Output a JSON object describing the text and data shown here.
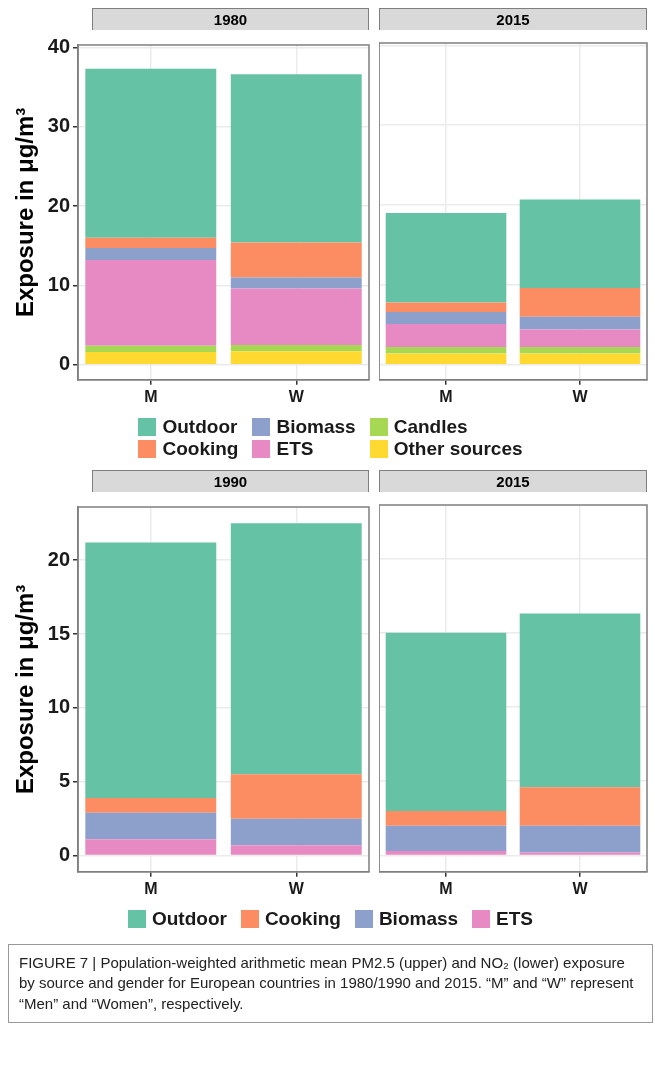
{
  "chart_data": [
    {
      "type": "bar",
      "title": "1980",
      "ylabel": "Exposure in μg/m³",
      "categories": [
        "M",
        "W"
      ],
      "stacked": true,
      "ylim": [
        -1.9,
        40.3
      ],
      "yticks": [
        0,
        10,
        20,
        30,
        40
      ],
      "grid": true,
      "legend": "bottom",
      "series": [
        {
          "name": "Other sources",
          "color": "#ffd92f",
          "values": [
            1.6,
            1.7
          ]
        },
        {
          "name": "Candles",
          "color": "#a6d854",
          "values": [
            0.8,
            0.8
          ]
        },
        {
          "name": "ETS",
          "color": "#e78ac3",
          "values": [
            10.8,
            7.1
          ]
        },
        {
          "name": "Biomass",
          "color": "#8da0cb",
          "values": [
            1.5,
            1.4
          ]
        },
        {
          "name": "Cooking",
          "color": "#fc8d62",
          "values": [
            1.3,
            4.4
          ]
        },
        {
          "name": "Outdoor",
          "color": "#66c2a5",
          "values": [
            21.3,
            21.2
          ]
        }
      ]
    },
    {
      "type": "bar",
      "title": "2015",
      "categories": [
        "M",
        "W"
      ],
      "stacked": true,
      "ylim": [
        -1.9,
        40.3
      ],
      "yticks": [
        0,
        10,
        20,
        30,
        40
      ],
      "grid": true,
      "tick_labels": "x",
      "series": [
        {
          "color": "#ffd92f",
          "values": [
            1.4,
            1.4
          ]
        },
        {
          "color": "#a6d854",
          "values": [
            0.8,
            0.8
          ]
        },
        {
          "color": "#e78ac3",
          "values": [
            2.9,
            2.2
          ]
        },
        {
          "color": "#8da0cb",
          "values": [
            1.5,
            1.6
          ]
        },
        {
          "color": "#fc8d62",
          "values": [
            1.2,
            3.6
          ]
        },
        {
          "color": "#66c2a5",
          "values": [
            11.2,
            11.1
          ]
        }
      ]
    },
    {
      "type": "bar",
      "title": "1990",
      "ylabel": "Exposure in μg/m³",
      "categories": [
        "M",
        "W"
      ],
      "stacked": true,
      "ylim": [
        -1.1,
        23.6
      ],
      "yticks": [
        0,
        5,
        10,
        15,
        20
      ],
      "grid": true,
      "legend": "bottom",
      "series": [
        {
          "name": "ETS",
          "color": "#e78ac3",
          "values": [
            1.1,
            0.7
          ]
        },
        {
          "name": "Biomass",
          "color": "#8da0cb",
          "values": [
            1.8,
            1.8
          ]
        },
        {
          "name": "Cooking",
          "color": "#fc8d62",
          "values": [
            1.0,
            3.0
          ]
        },
        {
          "name": "Outdoor",
          "color": "#66c2a5",
          "values": [
            17.3,
            17.0
          ]
        }
      ]
    },
    {
      "type": "bar",
      "title": "2015",
      "categories": [
        "M",
        "W"
      ],
      "stacked": true,
      "ylim": [
        -1.1,
        23.6
      ],
      "yticks": [
        0,
        5,
        10,
        15,
        20
      ],
      "grid": true,
      "tick_labels": "x",
      "annotations": [
        "FIGURE 7 | Population-weighted arithmetic mean PM2.5 (upper) and NO₂ (lower) exposure by source and gender for European countries in 1980/1990 and 2015. “M” and “W” represent “Men” and “Women”, respectively."
      ],
      "series": [
        {
          "color": "#e78ac3",
          "values": [
            0.3,
            0.2
          ]
        },
        {
          "color": "#8da0cb",
          "values": [
            1.7,
            1.8
          ]
        },
        {
          "color": "#fc8d62",
          "values": [
            1.0,
            2.6
          ]
        },
        {
          "color": "#66c2a5",
          "values": [
            12.0,
            11.7
          ]
        }
      ]
    }
  ]
}
